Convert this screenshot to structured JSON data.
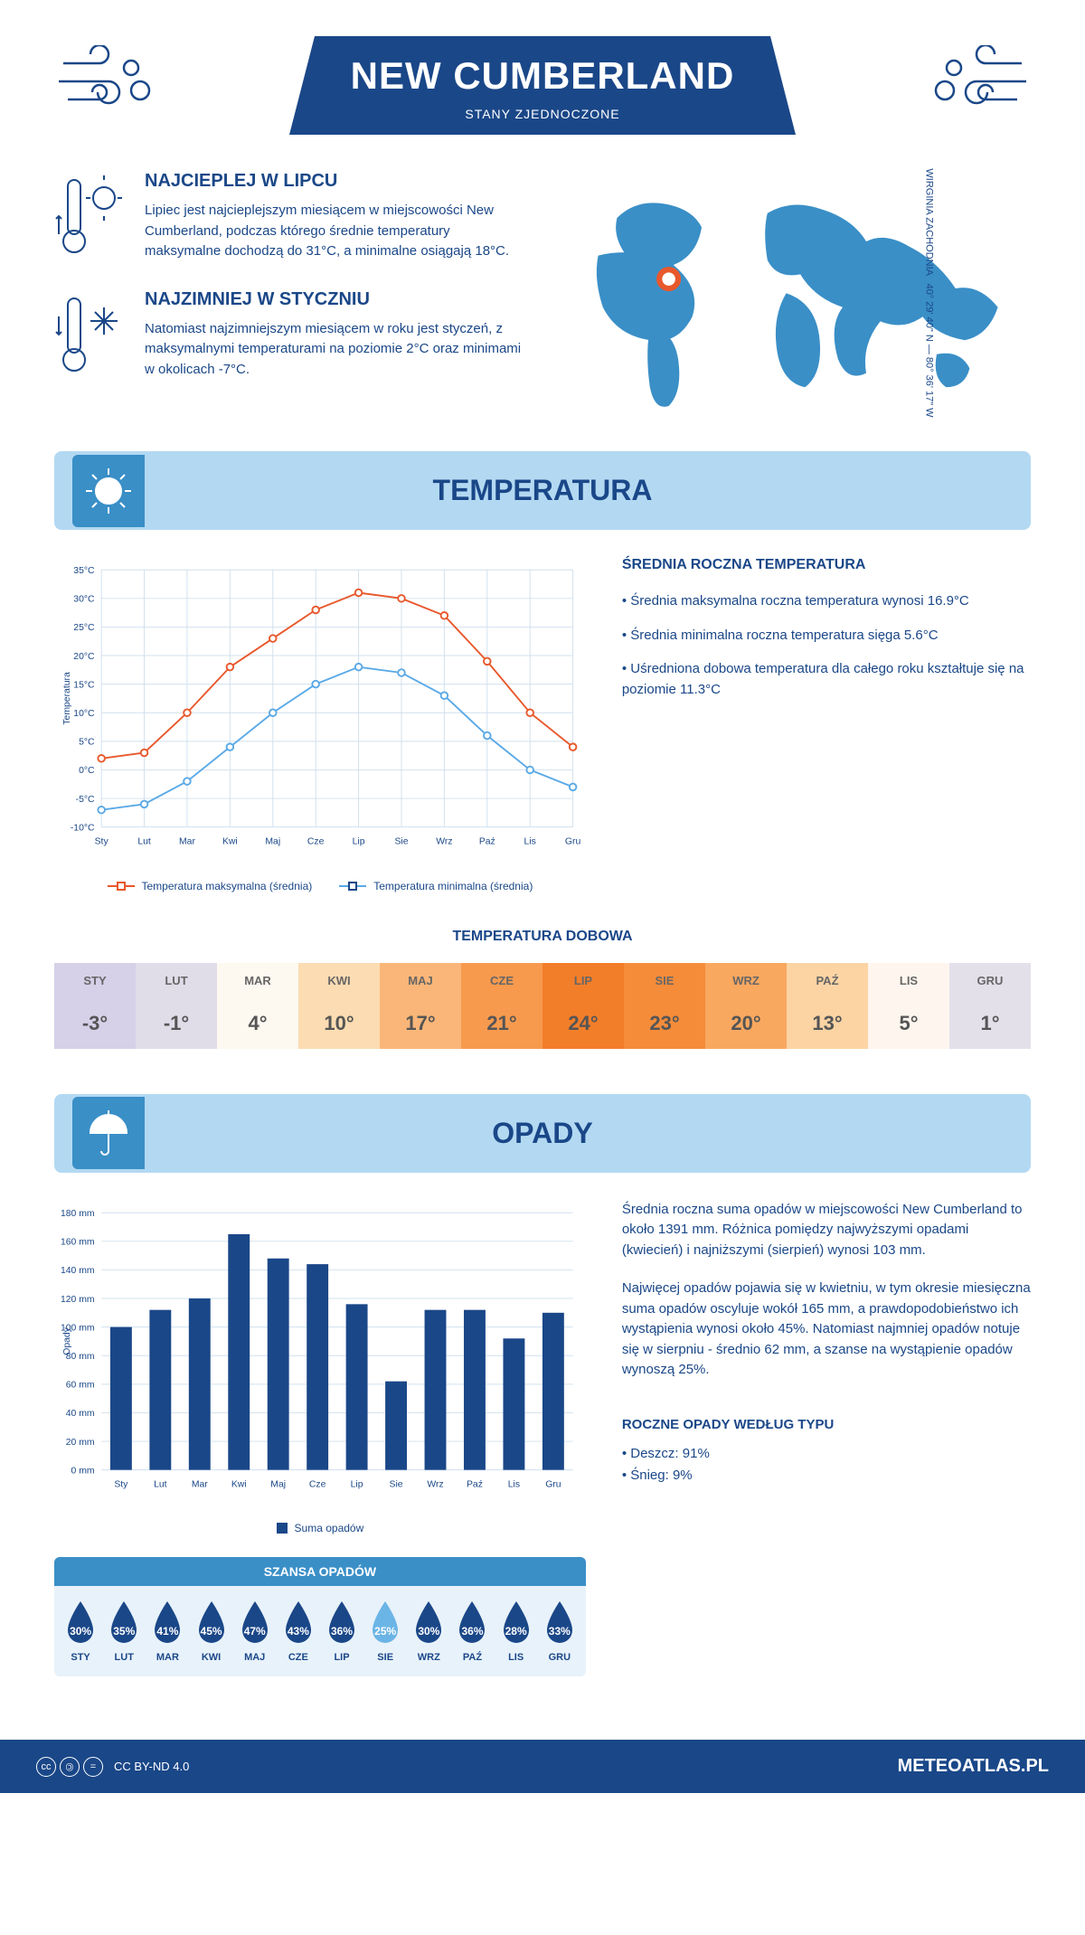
{
  "header": {
    "title": "NEW CUMBERLAND",
    "subtitle": "STANY ZJEDNOCZONE"
  },
  "intro": {
    "hot": {
      "title": "NAJCIEPLEJ W LIPCU",
      "text": "Lipiec jest najcieplejszym miesiącem w miejscowości New Cumberland, podczas którego średnie temperatury maksymalne dochodzą do 31°C, a minimalne osiągają 18°C."
    },
    "cold": {
      "title": "NAJZIMNIEJ W STYCZNIU",
      "text": "Natomiast najzimniejszym miesiącem w roku jest styczeń, z maksymalnymi temperaturami na poziomie 2°C oraz minimami w okolicach -7°C."
    },
    "coords": "40° 29' 40\" N — 80° 36' 17\" W",
    "region": "WIRGINIA ZACHODNIA"
  },
  "temp": {
    "section_title": "TEMPERATURA",
    "months": [
      "Sty",
      "Lut",
      "Mar",
      "Kwi",
      "Maj",
      "Cze",
      "Lip",
      "Sie",
      "Wrz",
      "Paź",
      "Lis",
      "Gru"
    ],
    "max_series": {
      "label": "Temperatura maksymalna (średnia)",
      "color": "#e8582c",
      "values": [
        2,
        3,
        10,
        18,
        23,
        28,
        31,
        30,
        27,
        19,
        10,
        4
      ]
    },
    "min_series": {
      "label": "Temperatura minimalna (średnia)",
      "color": "#5aa9e6",
      "values": [
        -7,
        -6,
        -2,
        4,
        10,
        15,
        18,
        17,
        13,
        6,
        0,
        -3
      ]
    },
    "ylabel": "Temperatura",
    "ylim": [
      -10,
      35
    ],
    "ystep": 5,
    "grid_color": "#d0e0ee",
    "info_title": "ŚREDNIA ROCZNA TEMPERATURA",
    "info_items": [
      "Średnia maksymalna roczna temperatura wynosi 16.9°C",
      "Średnia minimalna roczna temperatura sięga 5.6°C",
      "Uśredniona dobowa temperatura dla całego roku kształtuje się na poziomie 11.3°C"
    ],
    "daily_title": "TEMPERATURA DOBOWA",
    "daily": {
      "months": [
        "STY",
        "LUT",
        "MAR",
        "KWI",
        "MAJ",
        "CZE",
        "LIP",
        "SIE",
        "WRZ",
        "PAŹ",
        "LIS",
        "GRU"
      ],
      "values": [
        "-3°",
        "-1°",
        "4°",
        "10°",
        "17°",
        "21°",
        "24°",
        "23°",
        "20°",
        "13°",
        "5°",
        "1°"
      ],
      "colors": [
        "#d6d0e8",
        "#e0dce8",
        "#fdf8f0",
        "#fcdcb2",
        "#fab678",
        "#f79a4e",
        "#f37e29",
        "#f58c3a",
        "#f9a860",
        "#fcd4a4",
        "#fef6ee",
        "#e4e0ea"
      ]
    }
  },
  "precip": {
    "section_title": "OPADY",
    "months": [
      "Sty",
      "Lut",
      "Mar",
      "Kwi",
      "Maj",
      "Cze",
      "Lip",
      "Sie",
      "Wrz",
      "Paź",
      "Lis",
      "Gru"
    ],
    "values": [
      100,
      112,
      120,
      165,
      148,
      144,
      116,
      62,
      112,
      112,
      92,
      110
    ],
    "bar_color": "#1a4788",
    "ylim": [
      0,
      180
    ],
    "ystep": 20,
    "ylabel": "Opady",
    "legend_label": "Suma opadów",
    "grid_color": "#d0e0ee",
    "text1": "Średnia roczna suma opadów w miejscowości New Cumberland to około 1391 mm. Różnica pomiędzy najwyższymi opadami (kwiecień) i najniższymi (sierpień) wynosi 103 mm.",
    "text2": "Najwięcej opadów pojawia się w kwietniu, w tym okresie miesięczna suma opadów oscyluje wokół 165 mm, a prawdopodobieństwo ich wystąpienia wynosi około 45%. Natomiast najmniej opadów notuje się w sierpniu - średnio 62 mm, a szanse na wystąpienie opadów wynoszą 25%.",
    "chance_title": "SZANSA OPADÓW",
    "chance": {
      "months": [
        "STY",
        "LUT",
        "MAR",
        "KWI",
        "MAJ",
        "CZE",
        "LIP",
        "SIE",
        "WRZ",
        "PAŹ",
        "LIS",
        "GRU"
      ],
      "values": [
        "30%",
        "35%",
        "41%",
        "45%",
        "47%",
        "43%",
        "36%",
        "25%",
        "30%",
        "36%",
        "28%",
        "33%"
      ],
      "colors": [
        "#1a4788",
        "#1a4788",
        "#1a4788",
        "#1a4788",
        "#1a4788",
        "#1a4788",
        "#1a4788",
        "#6bb5e6",
        "#1a4788",
        "#1a4788",
        "#1a4788",
        "#1a4788"
      ]
    },
    "types_title": "ROCZNE OPADY WEDŁUG TYPU",
    "types": [
      "• Deszcz: 91%",
      "• Śnieg: 9%"
    ]
  },
  "footer": {
    "license": "CC BY-ND 4.0",
    "site": "METEOATLAS.PL"
  }
}
